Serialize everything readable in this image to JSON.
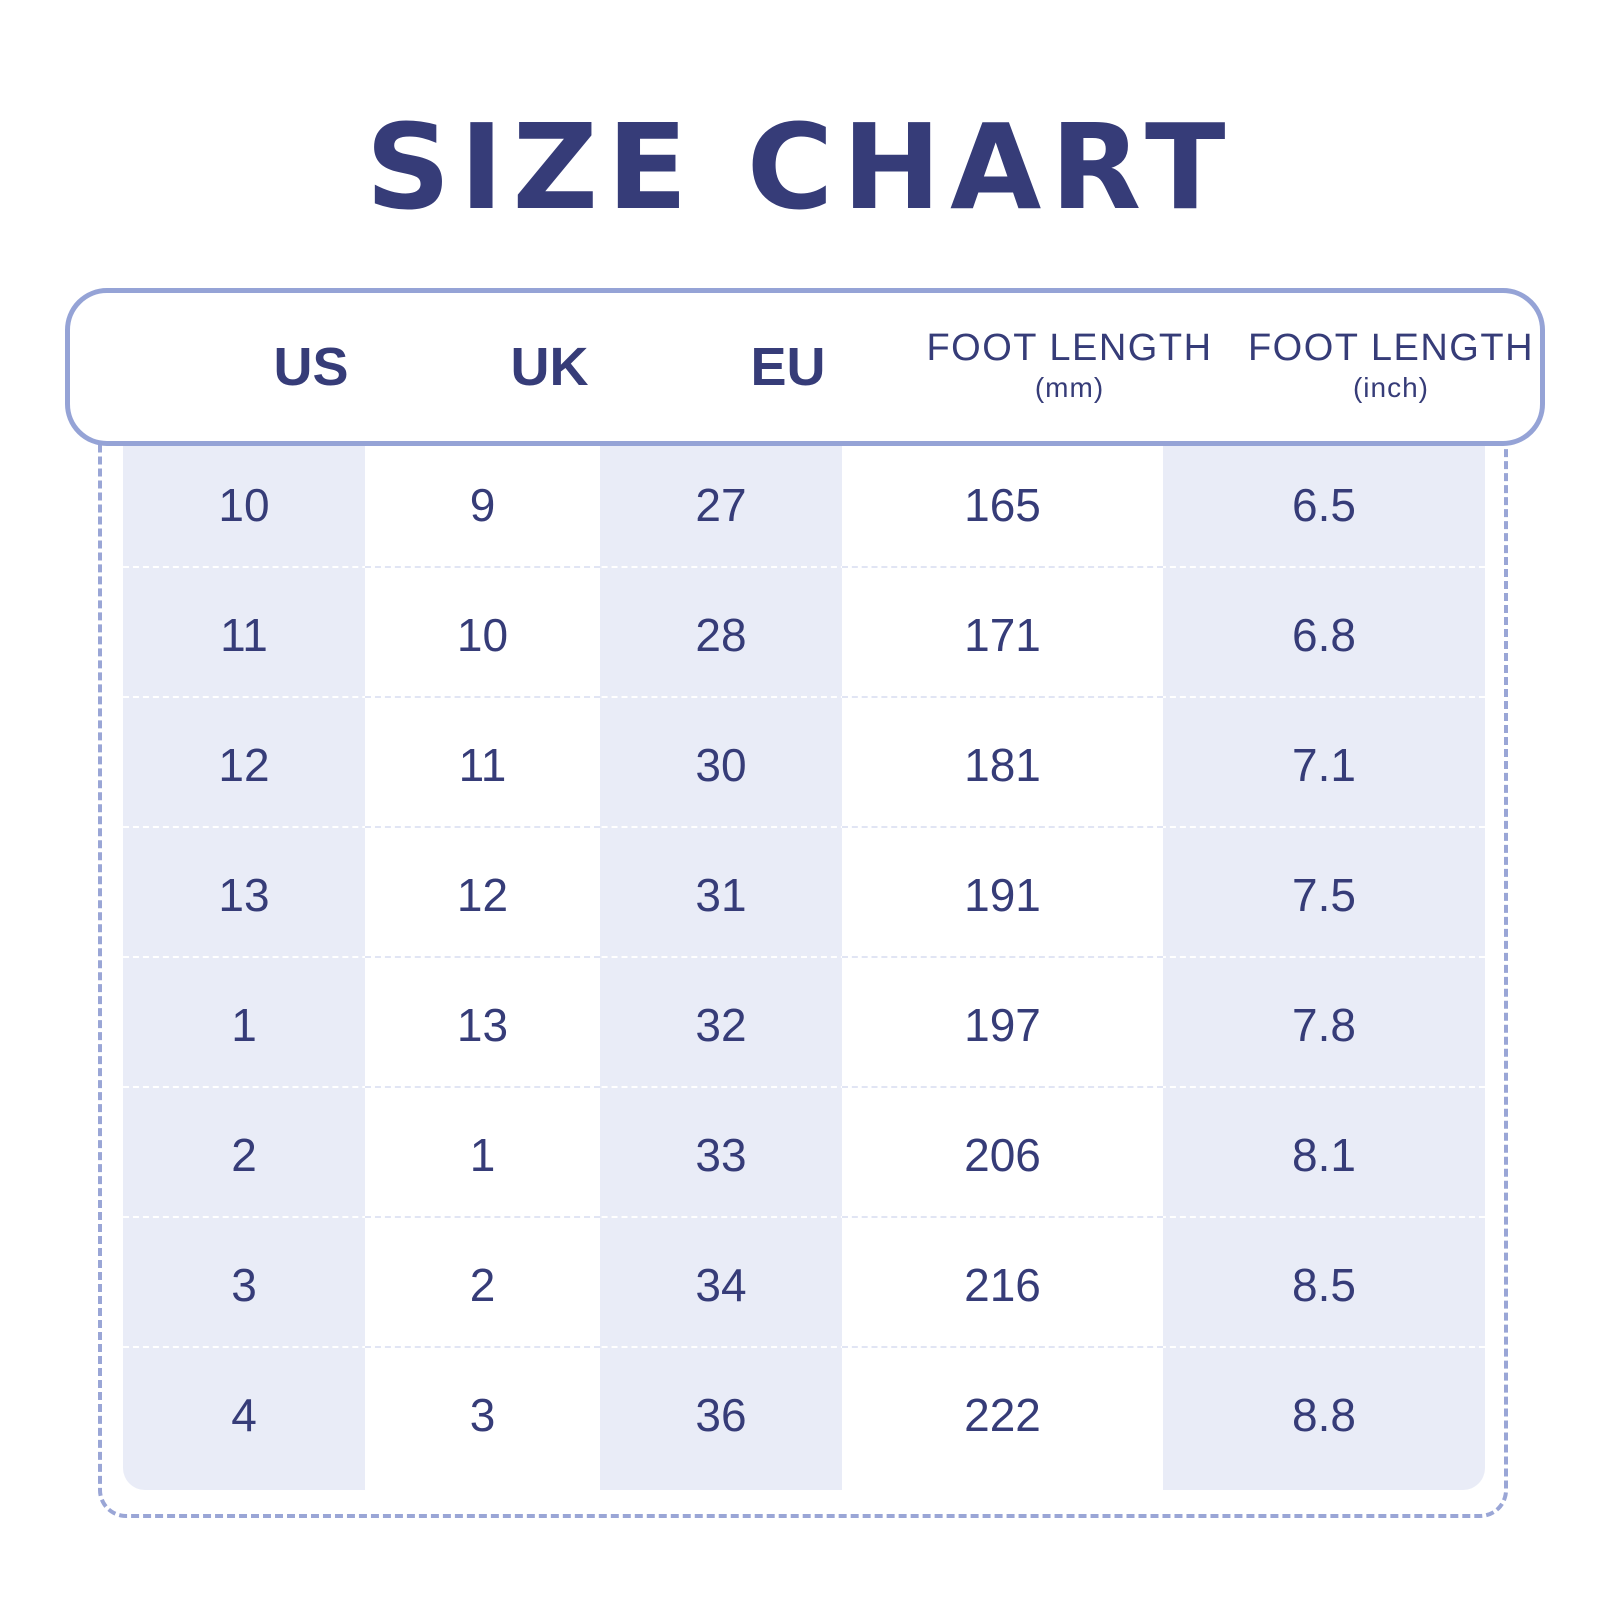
{
  "title": "SIZE CHART",
  "headers": {
    "us": "US",
    "uk": "UK",
    "eu": "EU",
    "foot_mm": {
      "main": "FOOT LENGTH",
      "sub": "(mm)"
    },
    "foot_inch": {
      "main": "FOOT LENGTH",
      "sub": "(inch)"
    }
  },
  "rows": [
    {
      "us": "10",
      "uk": "9",
      "eu": "27",
      "mm": "165",
      "inch": "6.5"
    },
    {
      "us": "11",
      "uk": "10",
      "eu": "28",
      "mm": "171",
      "inch": "6.8"
    },
    {
      "us": "12",
      "uk": "11",
      "eu": "30",
      "mm": "181",
      "inch": "7.1"
    },
    {
      "us": "13",
      "uk": "12",
      "eu": "31",
      "mm": "191",
      "inch": "7.5"
    },
    {
      "us": "1",
      "uk": "13",
      "eu": "32",
      "mm": "197",
      "inch": "7.8"
    },
    {
      "us": "2",
      "uk": "1",
      "eu": "33",
      "mm": "206",
      "inch": "8.1"
    },
    {
      "us": "3",
      "uk": "2",
      "eu": "34",
      "mm": "216",
      "inch": "8.5"
    },
    {
      "us": "4",
      "uk": "3",
      "eu": "36",
      "mm": "222",
      "inch": "8.8"
    }
  ],
  "colors": {
    "text": "#363c78",
    "band": "#e9ecf7",
    "border": "#95a3d6",
    "dashed": "#9aa6d6"
  }
}
